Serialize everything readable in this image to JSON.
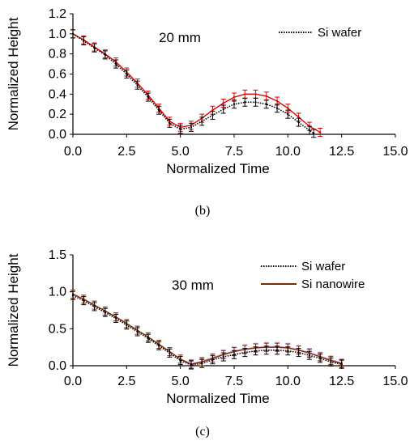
{
  "chart_data": [
    {
      "panel_label": "(b)",
      "type": "line",
      "annotation": "20 mm",
      "xlabel": "Normalized Time",
      "ylabel": "Normalized Height",
      "xlim": [
        0,
        15
      ],
      "ylim": [
        0,
        1.2
      ],
      "x_ticks": [
        "0.0",
        "2.5",
        "5.0",
        "7.5",
        "10.0",
        "12.5",
        "15.0"
      ],
      "y_ticks": [
        "0.0",
        "0.2",
        "0.4",
        "0.6",
        "0.8",
        "1.0",
        "1.2"
      ],
      "legend": [
        "Si wafer"
      ],
      "legend_position": "top-right",
      "error_bars": true,
      "series": [
        {
          "name": "Si wafer",
          "color": "#000000",
          "style": "dotted",
          "x": [
            0,
            0.5,
            1.0,
            1.5,
            2.0,
            2.5,
            3.0,
            3.5,
            4.0,
            4.5,
            5.0,
            5.5,
            6.0,
            6.5,
            7.0,
            7.5,
            8.0,
            8.5,
            9.0,
            9.5,
            10.0,
            10.5,
            11.0,
            11.2
          ],
          "y": [
            1.0,
            0.93,
            0.86,
            0.79,
            0.7,
            0.6,
            0.49,
            0.37,
            0.24,
            0.11,
            0.05,
            0.07,
            0.13,
            0.19,
            0.25,
            0.3,
            0.32,
            0.32,
            0.3,
            0.26,
            0.2,
            0.12,
            0.04,
            0.01
          ]
        },
        {
          "color": "#e00000",
          "style": "solid",
          "x": [
            0,
            0.5,
            1.0,
            1.5,
            2.0,
            2.5,
            3.0,
            3.5,
            4.0,
            4.5,
            5.0,
            5.5,
            6.0,
            6.5,
            7.0,
            7.5,
            8.0,
            8.5,
            9.0,
            9.5,
            10.0,
            10.5,
            11.0,
            11.5
          ],
          "y": [
            1.0,
            0.94,
            0.87,
            0.8,
            0.72,
            0.62,
            0.51,
            0.39,
            0.26,
            0.13,
            0.07,
            0.09,
            0.16,
            0.24,
            0.31,
            0.37,
            0.4,
            0.4,
            0.38,
            0.33,
            0.26,
            0.17,
            0.08,
            0.02
          ]
        }
      ]
    },
    {
      "panel_label": "(c)",
      "type": "line",
      "annotation": "30 mm",
      "xlabel": "Normalized Time",
      "ylabel": "Normalized Height",
      "xlim": [
        0,
        15
      ],
      "ylim": [
        0,
        1.5
      ],
      "x_ticks": [
        "0.0",
        "2.5",
        "5.0",
        "7.5",
        "10.0",
        "12.5",
        "15.0"
      ],
      "y_ticks": [
        "0.0",
        "0.5",
        "1.0",
        "1.5"
      ],
      "legend": [
        "Si wafer",
        "Si nanowire"
      ],
      "legend_position": "top-right",
      "error_bars": true,
      "series": [
        {
          "name": "Si wafer",
          "color": "#000000",
          "style": "dotted",
          "x": [
            0,
            0.5,
            1.0,
            1.5,
            2.0,
            2.5,
            3.0,
            3.5,
            4.0,
            4.5,
            5.0,
            5.5,
            6.0,
            6.5,
            7.0,
            7.5,
            8.0,
            8.5,
            9.0,
            9.5,
            10.0,
            10.5,
            11.0,
            11.5,
            12.0,
            12.5
          ],
          "y": [
            0.95,
            0.88,
            0.8,
            0.72,
            0.64,
            0.55,
            0.46,
            0.37,
            0.27,
            0.17,
            0.07,
            0.01,
            0.03,
            0.08,
            0.12,
            0.15,
            0.18,
            0.2,
            0.21,
            0.21,
            0.2,
            0.18,
            0.14,
            0.1,
            0.05,
            0.02
          ]
        },
        {
          "name": "Si nanowire",
          "color": "#7a2a00",
          "style": "solid",
          "x": [
            0,
            0.5,
            1.0,
            1.5,
            2.0,
            2.5,
            3.0,
            3.5,
            4.0,
            4.5,
            5.0,
            5.5,
            6.0,
            6.5,
            7.0,
            7.5,
            8.0,
            8.5,
            9.0,
            9.5,
            10.0,
            10.5,
            11.0,
            11.5,
            12.0,
            12.5
          ],
          "y": [
            0.97,
            0.9,
            0.82,
            0.74,
            0.66,
            0.57,
            0.48,
            0.39,
            0.29,
            0.19,
            0.09,
            0.02,
            0.05,
            0.1,
            0.15,
            0.19,
            0.22,
            0.24,
            0.25,
            0.25,
            0.24,
            0.21,
            0.17,
            0.12,
            0.07,
            0.03
          ]
        },
        {
          "color": "#e0a0e0",
          "style": "solid",
          "x": [
            0,
            0.5,
            1.0,
            1.5,
            2.0,
            2.5,
            3.0,
            3.5,
            4.0,
            4.5,
            5.0,
            5.5,
            6.0,
            6.5,
            7.0,
            7.5,
            8.0,
            8.5,
            9.0,
            9.5,
            10.0,
            10.5,
            11.0,
            11.5,
            12.0,
            12.5
          ],
          "y": [
            0.97,
            0.9,
            0.82,
            0.74,
            0.66,
            0.57,
            0.48,
            0.39,
            0.29,
            0.19,
            0.09,
            0.03,
            0.06,
            0.11,
            0.16,
            0.2,
            0.23,
            0.25,
            0.26,
            0.26,
            0.25,
            0.22,
            0.18,
            0.13,
            0.08,
            0.04
          ]
        }
      ]
    }
  ]
}
